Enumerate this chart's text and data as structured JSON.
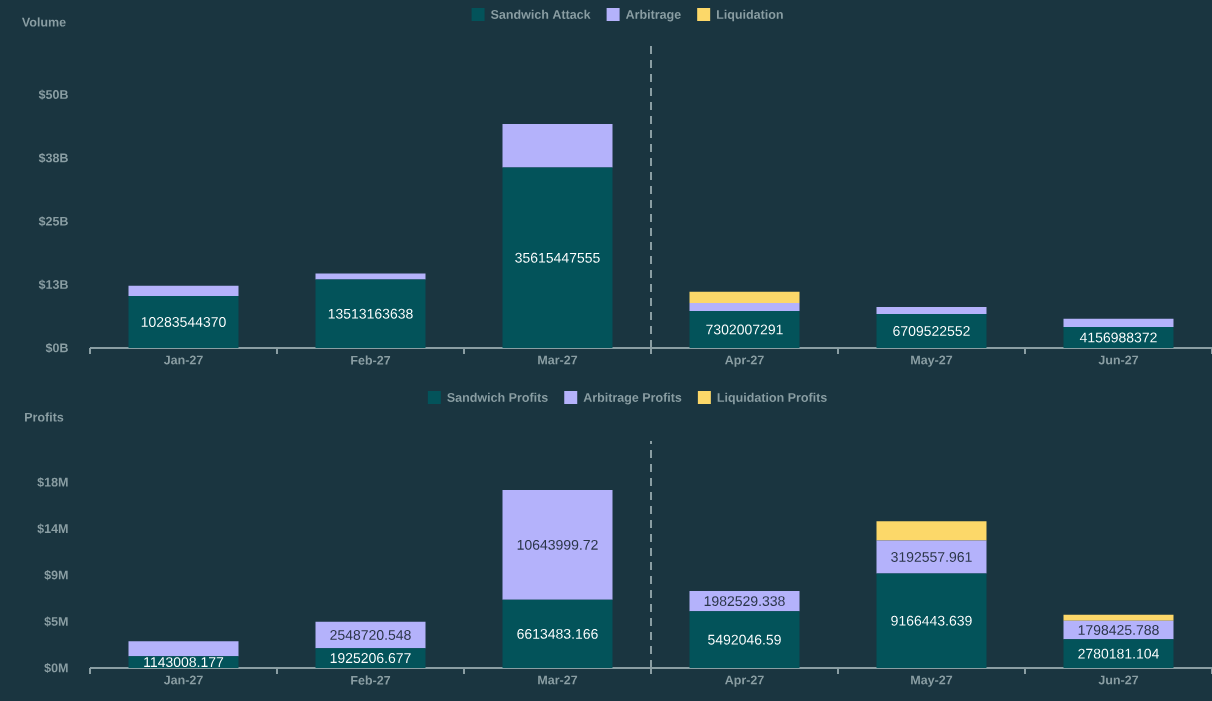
{
  "chart_data": [
    {
      "type": "bar",
      "stacked": true,
      "ylabel": "Volume",
      "legend": "top",
      "categories": [
        "Jan-27",
        "Feb-27",
        "Mar-27",
        "Apr-27",
        "May-27",
        "Jun-27"
      ],
      "series": [
        {
          "name": "Sandwich Attack",
          "color": "#03535a",
          "values": [
            10283544370,
            13513163638,
            35615447555,
            7302007291,
            6709522552,
            4156988372
          ],
          "value_labels": [
            "10283544370",
            "13513163638",
            "35615447555",
            "7302007291",
            "6709522552",
            "4156988372"
          ]
        },
        {
          "name": "Arbitrage",
          "color": "#b4b2fb",
          "values": [
            2000000000,
            1200000000,
            8600000000,
            1600000000,
            1400000000,
            1600000000
          ]
        },
        {
          "name": "Liquidation",
          "color": "#fcd869",
          "values": [
            null,
            null,
            null,
            2200000000,
            null,
            null
          ]
        }
      ],
      "ylim": [
        0,
        60000000000
      ],
      "yticks": [
        {
          "value": 0,
          "label": "$0B"
        },
        {
          "value": 12500000000,
          "label": "$13B"
        },
        {
          "value": 25000000000,
          "label": "$25B"
        },
        {
          "value": 37500000000,
          "label": "$38B"
        },
        {
          "value": 50000000000,
          "label": "$50B"
        }
      ]
    },
    {
      "type": "bar",
      "stacked": true,
      "ylabel": "Profits",
      "legend": "top",
      "categories": [
        "Jan-27",
        "Feb-27",
        "Mar-27",
        "Apr-27",
        "May-27",
        "Jun-27"
      ],
      "series": [
        {
          "name": "Sandwich Profits",
          "color": "#03535a",
          "values": [
            1143008.177,
            1925206.677,
            6613483.166,
            5492046.59,
            9166443.639,
            2780181.104
          ],
          "value_labels": [
            "1143008.177",
            "1925206.677",
            "6613483.166",
            "5492046.59",
            "9166443.639",
            "2780181.104"
          ]
        },
        {
          "name": "Arbitrage Profits",
          "color": "#b4b2fb",
          "values": [
            1450000,
            2548720.548,
            10643999.72,
            1982529.338,
            3192557.961,
            1798425.788
          ],
          "value_labels": [
            null,
            "2548720.548",
            "10643999.72",
            "1982529.338",
            "3192557.961",
            "1798425.788"
          ]
        },
        {
          "name": "Liquidation Profits",
          "color": "#fcd869",
          "values": [
            null,
            null,
            null,
            null,
            1870000,
            580000
          ]
        }
      ],
      "ylim": [
        0,
        22000000
      ],
      "yticks": [
        {
          "value": 0,
          "label": "$0M"
        },
        {
          "value": 4500000,
          "label": "$5M"
        },
        {
          "value": 9000000,
          "label": "$9M"
        },
        {
          "value": 13500000,
          "label": "$14M"
        },
        {
          "value": 18000000,
          "label": "$18M"
        }
      ]
    }
  ]
}
